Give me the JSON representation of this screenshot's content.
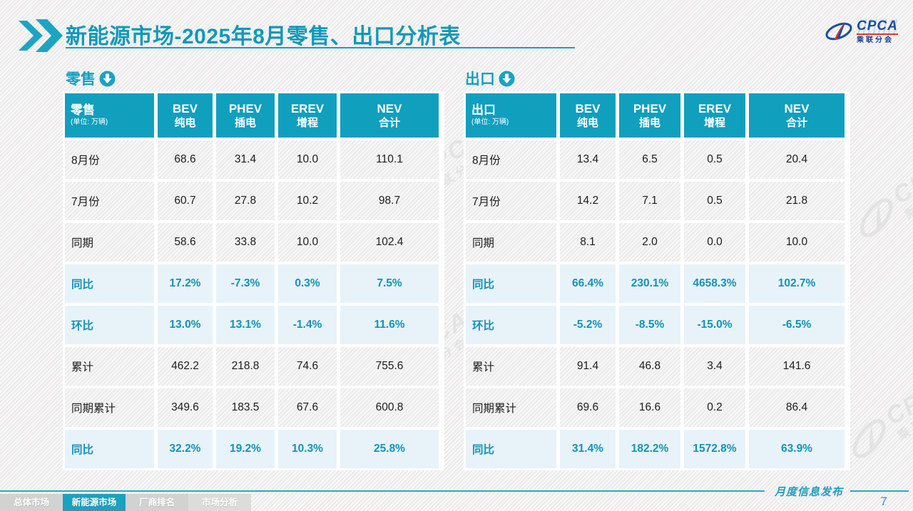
{
  "slide": {
    "title_main": "新能源市场",
    "title_rest": "-2025年8月零售、出口分析表",
    "footer_note": "月度信息发布",
    "page_number": "7"
  },
  "logo": {
    "name": "CPCA",
    "subtitle": "乘联分会"
  },
  "watermark": {
    "text": "CPCA",
    "subtext": "乘联分会"
  },
  "colors": {
    "primary_teal": "#119FBE",
    "percent_row_bg": "#E7F3F9",
    "percent_text": "#1592B8",
    "tab_active_bg": "#1AA2C0",
    "tab_inactive_bg": "#D2D2D2",
    "footer_line": "#2AA9C6"
  },
  "tabs": [
    {
      "label": "总体市场",
      "active": false
    },
    {
      "label": "新能源市场",
      "active": true
    },
    {
      "label": "厂商排名",
      "active": false
    },
    {
      "label": "市场分析",
      "active": false
    }
  ],
  "tables": [
    {
      "section_label": "零售",
      "corner_title": "零售",
      "unit": "(单位: 万辆)",
      "columns": [
        {
          "line1": "BEV",
          "line2": "纯电"
        },
        {
          "line1": "PHEV",
          "line2": "插电"
        },
        {
          "line1": "EREV",
          "line2": "增程"
        },
        {
          "line1": "NEV",
          "line2": "合计"
        }
      ],
      "rows": [
        {
          "label": "8月份",
          "percent": false,
          "values": [
            "68.6",
            "31.4",
            "10.0",
            "110.1"
          ]
        },
        {
          "label": "7月份",
          "percent": false,
          "values": [
            "60.7",
            "27.8",
            "10.2",
            "98.7"
          ]
        },
        {
          "label": "同期",
          "percent": false,
          "values": [
            "58.6",
            "33.8",
            "10.0",
            "102.4"
          ]
        },
        {
          "label": "同比",
          "percent": true,
          "values": [
            "17.2%",
            "-7.3%",
            "0.3%",
            "7.5%"
          ]
        },
        {
          "label": "环比",
          "percent": true,
          "values": [
            "13.0%",
            "13.1%",
            "-1.4%",
            "11.6%"
          ]
        },
        {
          "label": "累计",
          "percent": false,
          "values": [
            "462.2",
            "218.8",
            "74.6",
            "755.6"
          ]
        },
        {
          "label": "同期累计",
          "percent": false,
          "values": [
            "349.6",
            "183.5",
            "67.6",
            "600.8"
          ]
        },
        {
          "label": "同比",
          "percent": true,
          "values": [
            "32.2%",
            "19.2%",
            "10.3%",
            "25.8%"
          ]
        }
      ]
    },
    {
      "section_label": "出口",
      "corner_title": "出口",
      "unit": "(单位: 万辆)",
      "columns": [
        {
          "line1": "BEV",
          "line2": "纯电"
        },
        {
          "line1": "PHEV",
          "line2": "插电"
        },
        {
          "line1": "EREV",
          "line2": "增程"
        },
        {
          "line1": "NEV",
          "line2": "合计"
        }
      ],
      "rows": [
        {
          "label": "8月份",
          "percent": false,
          "values": [
            "13.4",
            "6.5",
            "0.5",
            "20.4"
          ]
        },
        {
          "label": "7月份",
          "percent": false,
          "values": [
            "14.2",
            "7.1",
            "0.5",
            "21.8"
          ]
        },
        {
          "label": "同期",
          "percent": false,
          "values": [
            "8.1",
            "2.0",
            "0.0",
            "10.0"
          ]
        },
        {
          "label": "同比",
          "percent": true,
          "values": [
            "66.4%",
            "230.1%",
            "4658.3%",
            "102.7%"
          ]
        },
        {
          "label": "环比",
          "percent": true,
          "values": [
            "-5.2%",
            "-8.5%",
            "-15.0%",
            "-6.5%"
          ]
        },
        {
          "label": "累计",
          "percent": false,
          "values": [
            "91.4",
            "46.8",
            "3.4",
            "141.6"
          ]
        },
        {
          "label": "同期累计",
          "percent": false,
          "values": [
            "69.6",
            "16.6",
            "0.2",
            "86.4"
          ]
        },
        {
          "label": "同比",
          "percent": true,
          "values": [
            "31.4%",
            "182.2%",
            "1572.8%",
            "63.9%"
          ]
        }
      ]
    }
  ]
}
